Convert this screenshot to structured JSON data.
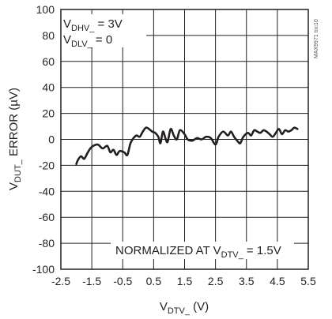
{
  "chart_data": {
    "type": "line",
    "title": "",
    "xlabel": {
      "main": "V",
      "sub": "DTV_",
      "tail": " (V)"
    },
    "ylabel": {
      "main": "V",
      "sub": "DUT_",
      "tail": " ERROR (µV)"
    },
    "xlim": [
      -2.5,
      5.5
    ],
    "ylim": [
      -100,
      100
    ],
    "x_ticks": [
      "-2.5",
      "-1.5",
      "-0.5",
      "0.5",
      "1.5",
      "2.5",
      "3.5",
      "4.5",
      "5.5"
    ],
    "y_ticks": [
      "100",
      "80",
      "60",
      "40",
      "20",
      "0",
      "-20",
      "-40",
      "-60",
      "-80",
      "-100"
    ],
    "grid": true,
    "legend": {
      "line1": {
        "main": "V",
        "sub": "DHV_",
        "tail": " = 3V"
      },
      "line2": {
        "main": "V",
        "sub": "DLV_",
        "tail": " = 0"
      }
    },
    "annotation": {
      "main": "NORMALIZED AT V",
      "sub": "DTV_",
      "tail": " = 1.5V"
    },
    "watermark": "MAX9971 toc10",
    "line_color": "#231f20",
    "series": [
      {
        "points": [
          [
            -2.0,
            -19
          ],
          [
            -1.95,
            -16
          ],
          [
            -1.85,
            -13
          ],
          [
            -1.75,
            -15
          ],
          [
            -1.65,
            -11
          ],
          [
            -1.55,
            -7
          ],
          [
            -1.45,
            -5
          ],
          [
            -1.3,
            -4
          ],
          [
            -1.15,
            -7
          ],
          [
            -1.0,
            -5
          ],
          [
            -0.9,
            -10
          ],
          [
            -0.8,
            -8
          ],
          [
            -0.7,
            -12
          ],
          [
            -0.6,
            -9
          ],
          [
            -0.45,
            -10
          ],
          [
            -0.35,
            -12
          ],
          [
            -0.25,
            -3
          ],
          [
            -0.15,
            1
          ],
          [
            -0.05,
            3
          ],
          [
            0.05,
            2
          ],
          [
            0.15,
            6
          ],
          [
            0.25,
            9
          ],
          [
            0.35,
            8
          ],
          [
            0.45,
            6
          ],
          [
            0.55,
            5
          ],
          [
            0.65,
            2
          ],
          [
            0.72,
            -3
          ],
          [
            0.8,
            6
          ],
          [
            0.88,
            1
          ],
          [
            0.95,
            -2
          ],
          [
            1.05,
            8
          ],
          [
            1.15,
            3
          ],
          [
            1.25,
            0
          ],
          [
            1.35,
            7
          ],
          [
            1.5,
            4
          ],
          [
            1.6,
            0
          ],
          [
            1.75,
            -1
          ],
          [
            1.9,
            1
          ],
          [
            2.05,
            0
          ],
          [
            2.2,
            2
          ],
          [
            2.35,
            1
          ],
          [
            2.5,
            -4
          ],
          [
            2.6,
            2
          ],
          [
            2.75,
            6
          ],
          [
            2.9,
            3
          ],
          [
            3.0,
            6
          ],
          [
            3.1,
            2
          ],
          [
            3.2,
            -1
          ],
          [
            3.3,
            -3
          ],
          [
            3.4,
            2
          ],
          [
            3.55,
            5
          ],
          [
            3.65,
            3
          ],
          [
            3.75,
            7
          ],
          [
            3.85,
            6
          ],
          [
            3.95,
            5
          ],
          [
            4.05,
            7
          ],
          [
            4.15,
            6
          ],
          [
            4.25,
            4
          ],
          [
            4.35,
            2
          ],
          [
            4.45,
            5
          ],
          [
            4.55,
            8
          ],
          [
            4.65,
            4
          ],
          [
            4.75,
            7
          ],
          [
            4.85,
            6
          ],
          [
            4.95,
            7
          ],
          [
            5.05,
            9
          ],
          [
            5.15,
            8
          ]
        ]
      }
    ]
  }
}
